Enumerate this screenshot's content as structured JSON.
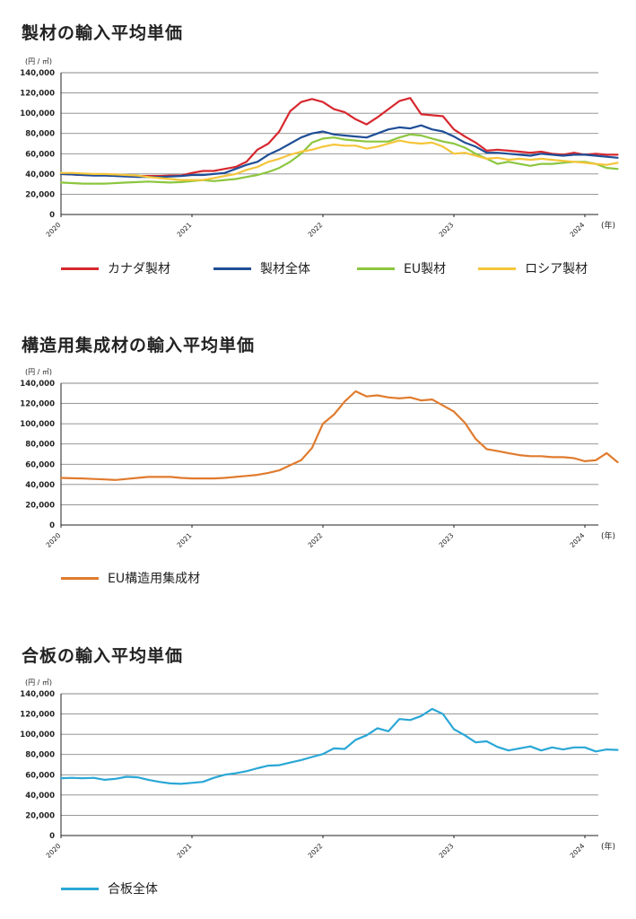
{
  "chart_data": [
    {
      "type": "line",
      "title": "製材の輸入平均単価",
      "unit": "(円 / ㎥)",
      "xunit": "(年)",
      "ylim": [
        0,
        140000
      ],
      "yticks": [
        "0",
        "20,000",
        "40,000",
        "60,000",
        "80,000",
        "100,000",
        "120,000",
        "140,000"
      ],
      "xticks": [
        "2020",
        "2021",
        "2022",
        "2023",
        "2024"
      ],
      "x_start": "2020-01",
      "grid": true,
      "legend": "bottom",
      "series": [
        {
          "name": "カナダ製材",
          "color": "#d7282f",
          "values": [
            40000,
            39500,
            39000,
            39000,
            39000,
            38500,
            38500,
            38000,
            38000,
            38000,
            38500,
            38500,
            41000,
            43000,
            43000,
            45000,
            47000,
            52000,
            64000,
            70000,
            82000,
            102000,
            111000,
            114000,
            111000,
            104000,
            101000,
            94000,
            89000,
            96000,
            104000,
            112000,
            115000,
            99000,
            98000,
            97000,
            84000,
            77000,
            71000,
            63000,
            64000,
            63000,
            62000,
            61000,
            62000,
            60000,
            59000,
            61000,
            59000,
            60000,
            59000,
            59000
          ]
        },
        {
          "name": "製材全体",
          "color": "#1f4e96",
          "values": [
            40000,
            39500,
            39000,
            38500,
            38500,
            38000,
            37500,
            37000,
            37000,
            37000,
            37500,
            38000,
            39000,
            39000,
            40000,
            41000,
            45000,
            49000,
            52000,
            59000,
            64000,
            70000,
            76000,
            80000,
            82000,
            79000,
            78000,
            77000,
            76000,
            80000,
            84000,
            86000,
            85000,
            88000,
            84000,
            82000,
            77000,
            71000,
            67000,
            61000,
            61000,
            60000,
            59000,
            58000,
            60000,
            59000,
            58000,
            59000,
            59000,
            58000,
            57000,
            56000
          ]
        },
        {
          "name": "EU製材",
          "color": "#8cc63f",
          "values": [
            31500,
            31000,
            30500,
            30500,
            30500,
            31000,
            31500,
            32000,
            32500,
            32000,
            31500,
            32000,
            33000,
            34000,
            33000,
            34000,
            35000,
            37000,
            39000,
            42000,
            46000,
            52000,
            60000,
            71000,
            75000,
            76000,
            74000,
            73000,
            72000,
            72000,
            72000,
            76000,
            79000,
            78000,
            75000,
            72000,
            70000,
            66000,
            60000,
            55000,
            50000,
            52000,
            50000,
            48000,
            50000,
            50000,
            51000,
            52000,
            52000,
            50000,
            46000,
            45000
          ]
        },
        {
          "name": "ロシア製材",
          "color": "#f5c53a",
          "values": [
            41000,
            41000,
            40500,
            40000,
            40000,
            39500,
            39000,
            38500,
            37000,
            36000,
            35000,
            34000,
            34000,
            34000,
            36000,
            38000,
            40000,
            44000,
            47000,
            52000,
            55000,
            59000,
            62000,
            64000,
            67000,
            69000,
            68000,
            68000,
            65000,
            67000,
            70000,
            73000,
            71000,
            70000,
            71000,
            67000,
            60000,
            61000,
            58000,
            55000,
            56000,
            54000,
            55000,
            54000,
            55000,
            54000,
            53000,
            52000,
            51000,
            50000,
            49000,
            51000
          ]
        }
      ]
    },
    {
      "type": "line",
      "title": "構造用集成材の輸入平均単価",
      "unit": "(円 / ㎥)",
      "xunit": "(年)",
      "ylim": [
        0,
        140000
      ],
      "yticks": [
        "0",
        "20,000",
        "40,000",
        "60,000",
        "80,000",
        "100,000",
        "120,000",
        "140,000"
      ],
      "xticks": [
        "2020",
        "2021",
        "2022",
        "2023",
        "2024"
      ],
      "x_start": "2020-01",
      "grid": true,
      "legend": "bottom",
      "series": [
        {
          "name": "EU構造用集成材",
          "color": "#e07b2e",
          "values": [
            46500,
            46200,
            46000,
            45500,
            45000,
            44500,
            45500,
            46500,
            47500,
            47500,
            47500,
            46500,
            46000,
            46000,
            46000,
            46500,
            47500,
            48500,
            49500,
            51500,
            54000,
            59000,
            64000,
            76000,
            100000,
            109000,
            122000,
            132000,
            127000,
            128000,
            126000,
            125000,
            126000,
            123000,
            124000,
            118000,
            112000,
            101000,
            85000,
            75000,
            73000,
            71000,
            69000,
            68000,
            68000,
            67000,
            67000,
            66000,
            63000,
            64000,
            71000,
            62000
          ]
        }
      ]
    },
    {
      "type": "line",
      "title": "合板の輸入平均単価",
      "unit": "(円 / ㎥)",
      "xunit": "(年)",
      "ylim": [
        0,
        140000
      ],
      "yticks": [
        "0",
        "20,000",
        "40,000",
        "60,000",
        "80,000",
        "100,000",
        "120,000",
        "140,000"
      ],
      "xticks": [
        "2020",
        "2021",
        "2022",
        "2023",
        "2024"
      ],
      "x_start": "2020-01",
      "grid": true,
      "legend": "bottom",
      "series": [
        {
          "name": "合板全体",
          "color": "#2aa7d6",
          "values": [
            56500,
            57000,
            56500,
            57000,
            55000,
            56000,
            58000,
            57500,
            55000,
            53000,
            51500,
            51000,
            52000,
            53000,
            57000,
            60000,
            61500,
            63500,
            66500,
            69000,
            69500,
            72000,
            74500,
            77500,
            80500,
            86000,
            85500,
            94500,
            99000,
            106000,
            103000,
            115000,
            114000,
            118000,
            125000,
            120000,
            105000,
            99000,
            92000,
            93000,
            87500,
            84000,
            86000,
            88000,
            84000,
            87000,
            85000,
            87000,
            87000,
            83000,
            85000,
            84500
          ]
        }
      ]
    }
  ]
}
